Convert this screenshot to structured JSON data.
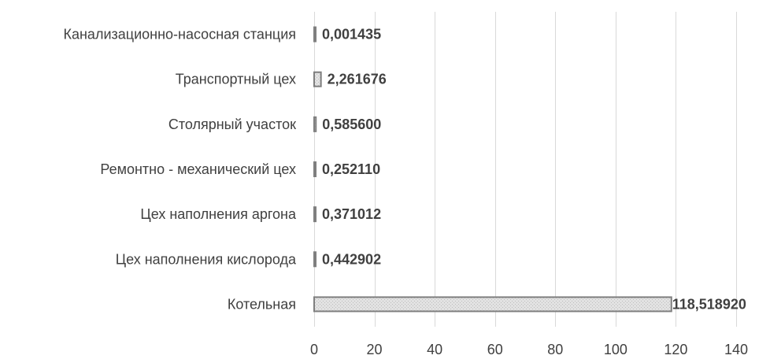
{
  "chart_data": {
    "type": "bar",
    "orientation": "horizontal",
    "title": "",
    "xlabel": "",
    "ylabel": "",
    "categories": [
      "Котельная",
      "Цех наполнения кислорода",
      "Цех наполнения аргона",
      "Ремонтно - механический цех",
      "Столярный участок",
      "Транспортный цех",
      "Канализационно-насосная станция"
    ],
    "values": [
      118.51892,
      0.442902,
      0.371012,
      0.25211,
      0.5856,
      2.261676,
      0.001435
    ],
    "data_labels": [
      "118,518920",
      "0,442902",
      "0,371012",
      "0,252110",
      "0,585600",
      "2,261676",
      "0,001435"
    ],
    "xlim": [
      0,
      140
    ],
    "x_ticks": [
      0,
      20,
      40,
      60,
      80,
      100,
      120,
      140
    ],
    "x_tick_labels": [
      "0",
      "20",
      "40",
      "60",
      "80",
      "100",
      "120",
      "140"
    ],
    "grid": true,
    "legend": "none",
    "colors": {
      "bar_fill": "#d9d9d9",
      "bar_border": "#7f7f7f",
      "gridline": "#d9d9d9",
      "text": "#404040"
    }
  }
}
